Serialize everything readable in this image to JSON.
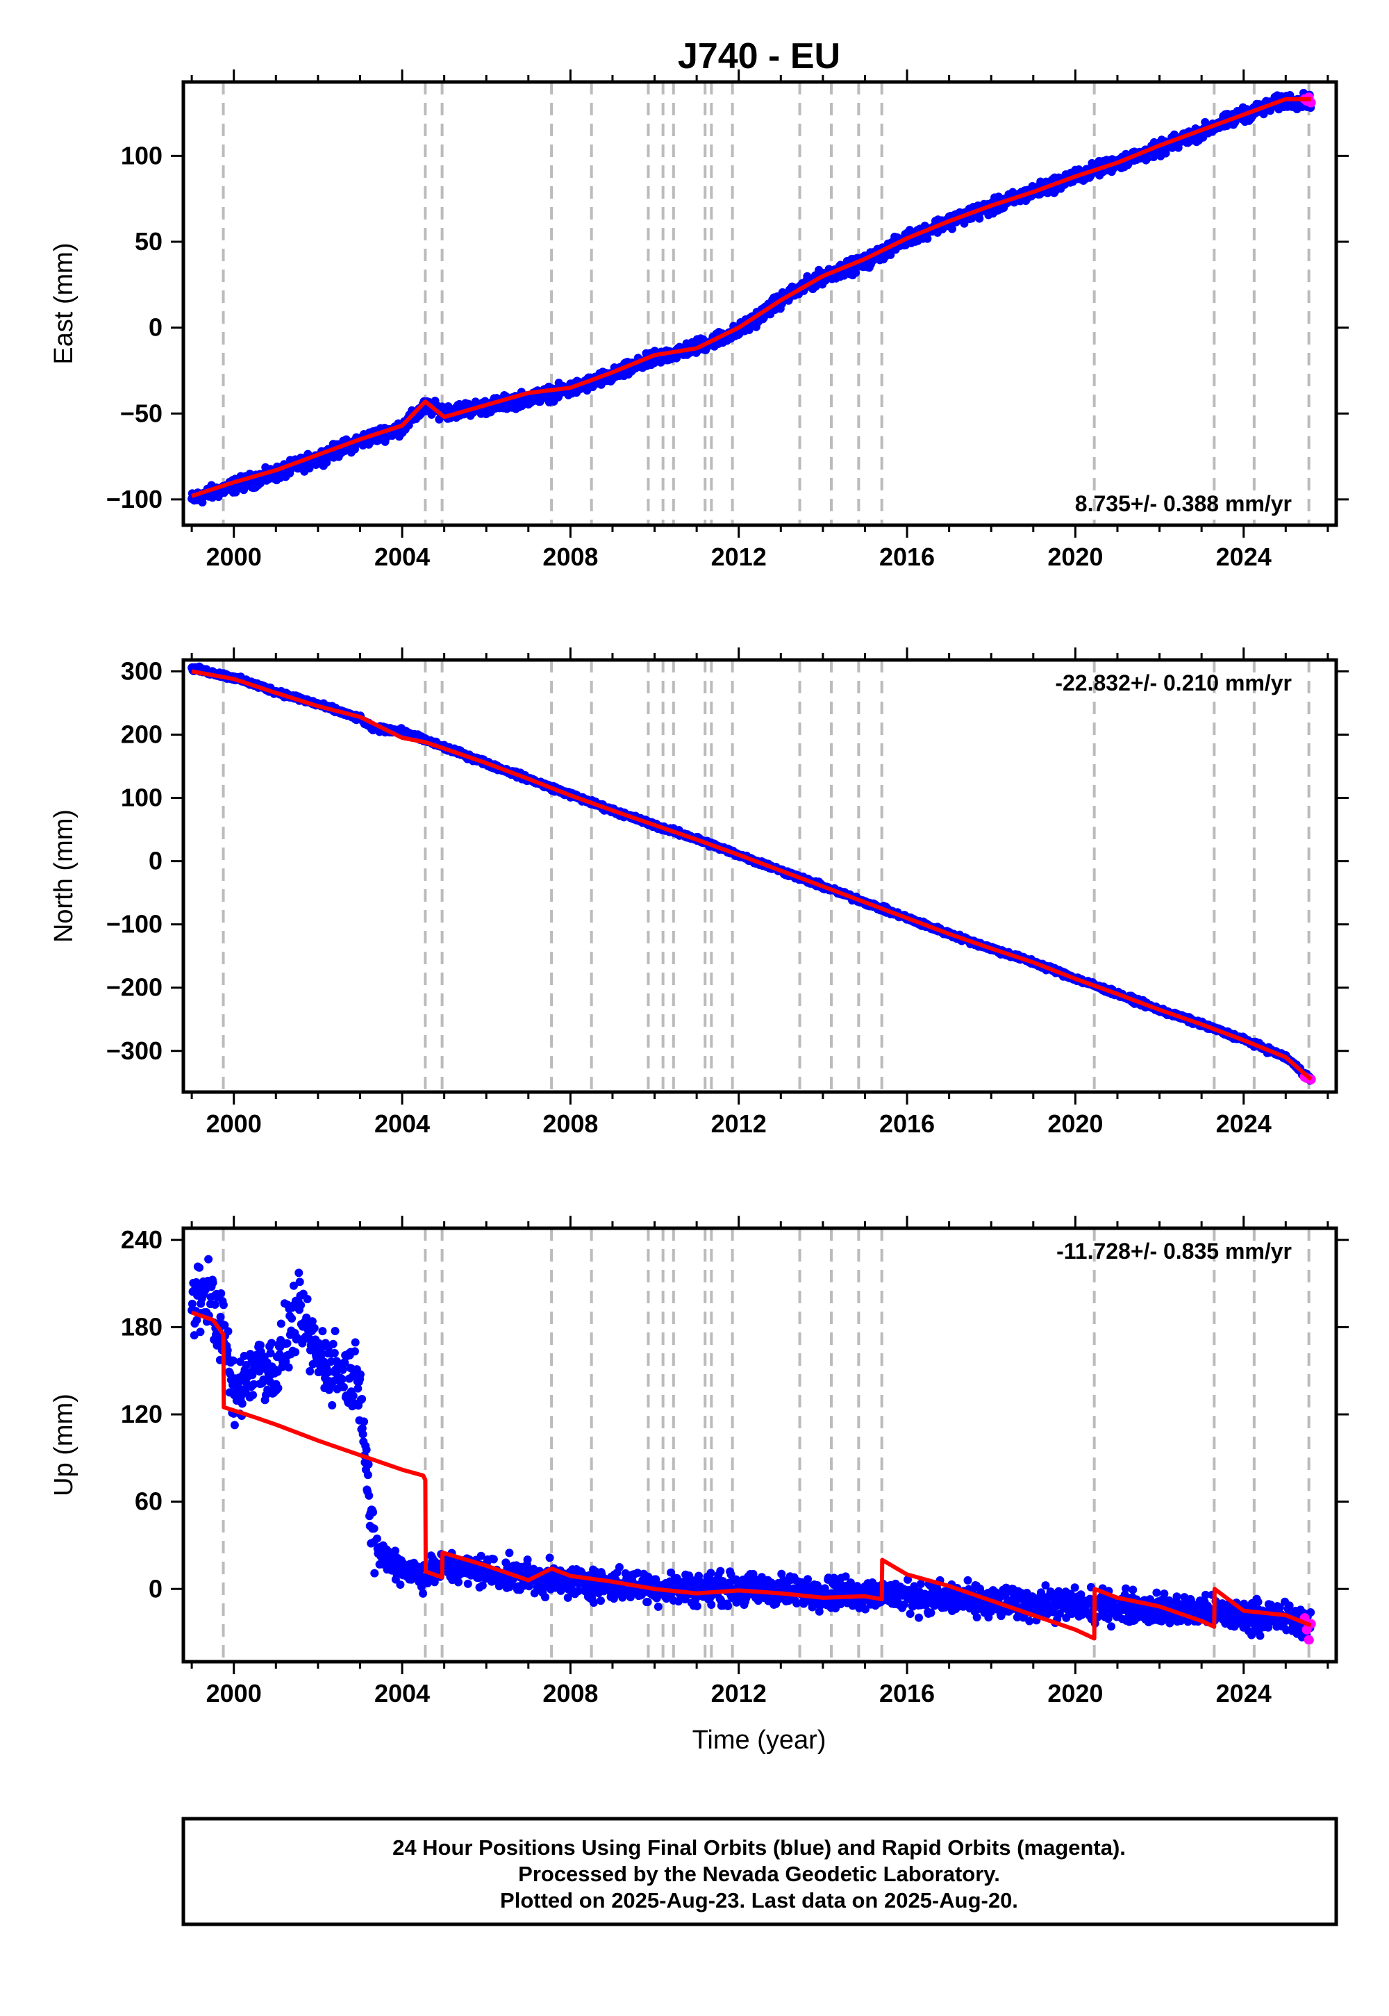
{
  "title": "J740 - EU",
  "xlabel": "Time (year)",
  "footer": {
    "line1": "24 Hour Positions Using Final Orbits (blue) and Rapid Orbits (magenta).",
    "line2": "Processed by the Nevada Geodetic Laboratory.",
    "line3": "Plotted on 2025-Aug-23. Last data on 2025-Aug-20."
  },
  "colors": {
    "final": "#0000ff",
    "rapid": "#ff00ff",
    "model": "#ff0000",
    "steps": "#bbbbbb"
  },
  "chart_data": [
    {
      "type": "scatter",
      "component": "East",
      "ylabel": "East (mm)",
      "rate": "8.735+/- 0.388 mm/yr",
      "rate_position": "bottom-right",
      "xlim": [
        1998.8,
        2026.2
      ],
      "ylim": [
        -115,
        143
      ],
      "xticks": [
        2000,
        2004,
        2008,
        2012,
        2016,
        2020,
        2024
      ],
      "yticks": [
        -100,
        -50,
        0,
        50,
        100
      ],
      "step_epochs": [
        1999.75,
        2004.55,
        2004.95,
        2007.55,
        2008.5,
        2009.85,
        2010.2,
        2010.45,
        2011.2,
        2011.35,
        2011.85,
        2013.45,
        2014.2,
        2014.85,
        2015.4,
        2020.45,
        2023.3,
        2024.25,
        2025.55
      ],
      "series": [
        {
          "name": "Final Orbits (blue)",
          "kind": "points",
          "x": [
            1999.0,
            2000.0,
            2001.0,
            2002.0,
            2003.0,
            2004.0,
            2004.55,
            2005.0,
            2006.0,
            2007.0,
            2008.0,
            2009.0,
            2010.0,
            2011.0,
            2012.0,
            2013.0,
            2014.0,
            2015.0,
            2016.0,
            2017.0,
            2018.0,
            2019.0,
            2020.0,
            2021.0,
            2022.0,
            2023.0,
            2024.0,
            2025.0,
            2025.6
          ],
          "y": [
            -100,
            -92,
            -85,
            -76,
            -66,
            -58,
            -46,
            -49,
            -46,
            -41,
            -36,
            -28,
            -18,
            -11,
            -2,
            16,
            30,
            38,
            52,
            62,
            70,
            79,
            88,
            96,
            104,
            114,
            124,
            132,
            132
          ]
        },
        {
          "name": "Rapid Orbits (magenta)",
          "kind": "points",
          "x": [
            2025.45,
            2025.5,
            2025.55,
            2025.6
          ],
          "y": [
            133,
            132,
            134,
            131
          ]
        },
        {
          "name": "model",
          "kind": "line",
          "x": [
            1999.0,
            2000.0,
            2001.0,
            2002.0,
            2003.0,
            2004.0,
            2004.55,
            2005.0,
            2006.0,
            2007.0,
            2008.0,
            2009.0,
            2010.0,
            2011.0,
            2012.0,
            2013.0,
            2014.0,
            2015.0,
            2016.0,
            2017.0,
            2018.0,
            2019.0,
            2020.0,
            2021.0,
            2022.0,
            2023.0,
            2024.0,
            2025.0,
            2025.6
          ],
          "y": [
            -98,
            -90,
            -83,
            -74,
            -65,
            -57,
            -43,
            -52,
            -45,
            -38,
            -35,
            -26,
            -16,
            -12,
            0,
            16,
            30,
            40,
            52,
            62,
            71,
            79,
            88,
            96,
            106,
            115,
            124,
            133,
            133
          ]
        }
      ]
    },
    {
      "type": "scatter",
      "component": "North",
      "ylabel": "North (mm)",
      "rate": "-22.832+/- 0.210 mm/yr",
      "rate_position": "top-right",
      "xlim": [
        1998.8,
        2026.2
      ],
      "ylim": [
        -365,
        318
      ],
      "xticks": [
        2000,
        2004,
        2008,
        2012,
        2016,
        2020,
        2024
      ],
      "yticks": [
        -300,
        -200,
        -100,
        0,
        100,
        200,
        300
      ],
      "step_epochs": [
        1999.75,
        2004.55,
        2004.95,
        2007.55,
        2008.5,
        2009.85,
        2010.2,
        2010.45,
        2011.2,
        2011.35,
        2011.85,
        2013.45,
        2014.2,
        2014.85,
        2015.4,
        2020.45,
        2023.3,
        2024.25,
        2025.55
      ],
      "series": [
        {
          "name": "Final Orbits (blue)",
          "kind": "points",
          "x": [
            1999.0,
            2000.0,
            2001.0,
            2002.0,
            2003.0,
            2003.3,
            2004.0,
            2005.0,
            2006.0,
            2007.0,
            2008.0,
            2009.0,
            2010.0,
            2011.0,
            2012.0,
            2013.0,
            2014.0,
            2015.0,
            2016.0,
            2017.0,
            2018.0,
            2019.0,
            2020.0,
            2021.0,
            2022.0,
            2023.0,
            2024.0,
            2025.0,
            2025.6
          ],
          "y": [
            305,
            290,
            268,
            248,
            225,
            210,
            205,
            180,
            155,
            130,
            105,
            80,
            57,
            35,
            10,
            -15,
            -40,
            -65,
            -90,
            -115,
            -138,
            -160,
            -185,
            -210,
            -235,
            -258,
            -282,
            -310,
            -345
          ]
        },
        {
          "name": "Rapid Orbits (magenta)",
          "kind": "points",
          "x": [
            2025.45,
            2025.5,
            2025.55,
            2025.6
          ],
          "y": [
            -341,
            -343,
            -344,
            -345
          ]
        },
        {
          "name": "model",
          "kind": "line",
          "x": [
            1999.0,
            2000.0,
            2001.0,
            2002.0,
            2003.0,
            2004.0,
            2004.55,
            2005.0,
            2006.0,
            2007.0,
            2008.0,
            2009.0,
            2010.0,
            2011.0,
            2012.0,
            2013.0,
            2014.0,
            2015.0,
            2016.0,
            2017.0,
            2018.0,
            2019.0,
            2020.0,
            2021.0,
            2022.0,
            2023.0,
            2024.0,
            2025.0,
            2025.6
          ],
          "y": [
            300,
            288,
            266,
            245,
            228,
            195,
            188,
            178,
            155,
            130,
            104,
            80,
            57,
            34,
            10,
            -15,
            -40,
            -65,
            -90,
            -115,
            -138,
            -160,
            -186,
            -210,
            -235,
            -258,
            -283,
            -310,
            -345
          ]
        }
      ]
    },
    {
      "type": "scatter",
      "component": "Up",
      "ylabel": "Up (mm)",
      "xlabel": "Time (year)",
      "rate": "-11.728+/- 0.835 mm/yr",
      "rate_position": "top-right",
      "xlim": [
        1998.8,
        2026.2
      ],
      "ylim": [
        -50,
        248
      ],
      "xticks": [
        2000,
        2004,
        2008,
        2012,
        2016,
        2020,
        2024
      ],
      "yticks": [
        0,
        60,
        120,
        180,
        240
      ],
      "step_epochs": [
        1999.75,
        2004.55,
        2004.95,
        2007.55,
        2008.5,
        2009.85,
        2010.2,
        2010.45,
        2011.2,
        2011.35,
        2011.85,
        2013.45,
        2014.2,
        2014.85,
        2015.4,
        2020.45,
        2023.3,
        2024.25,
        2025.55
      ],
      "series": [
        {
          "name": "Final Orbits (blue)",
          "kind": "points",
          "x": [
            1999.0,
            1999.4,
            1999.8,
            2000.0,
            2000.5,
            2001.0,
            2001.5,
            2002.0,
            2002.5,
            2003.0,
            2003.3,
            2004.0,
            2004.5,
            2005.0,
            2006.0,
            2007.0,
            2008.0,
            2009.0,
            2010.0,
            2011.0,
            2012.0,
            2013.0,
            2014.0,
            2015.0,
            2016.0,
            2017.0,
            2018.0,
            2019.0,
            2020.0,
            2021.0,
            2022.0,
            2023.0,
            2024.0,
            2025.0,
            2025.6
          ],
          "y": [
            195,
            205,
            170,
            130,
            155,
            150,
            190,
            160,
            150,
            145,
            28,
            15,
            10,
            15,
            12,
            8,
            5,
            3,
            1,
            0,
            0,
            -1,
            -2,
            -3,
            -5,
            -7,
            -9,
            -10,
            -11,
            -12,
            -14,
            -16,
            -18,
            -20,
            -25
          ]
        },
        {
          "name": "Rapid Orbits (magenta)",
          "kind": "points",
          "x": [
            2025.45,
            2025.5,
            2025.55,
            2025.6
          ],
          "y": [
            -20,
            -28,
            -35,
            -24
          ]
        },
        {
          "name": "model",
          "kind": "line",
          "x": [
            1999.0,
            1999.5,
            1999.75,
            1999.76,
            2000.5,
            2001.0,
            2002.0,
            2003.0,
            2004.0,
            2004.5,
            2004.55,
            2004.56,
            2004.95,
            2004.96,
            2006.0,
            2007.0,
            2007.55,
            2008.0,
            2009.0,
            2010.0,
            2011.0,
            2012.0,
            2013.0,
            2014.0,
            2015.0,
            2015.4,
            2015.41,
            2016.0,
            2017.0,
            2018.0,
            2019.0,
            2020.0,
            2020.45,
            2020.46,
            2021.0,
            2022.0,
            2023.0,
            2023.3,
            2023.31,
            2024.0,
            2025.0,
            2025.6
          ],
          "y": [
            190,
            185,
            175,
            125,
            118,
            113,
            102,
            92,
            82,
            78,
            75,
            12,
            8,
            25,
            16,
            6,
            14,
            9,
            5,
            0,
            -3,
            -1,
            -3,
            -6,
            -5,
            -7,
            20,
            10,
            2,
            -8,
            -18,
            -28,
            -34,
            0,
            -6,
            -12,
            -22,
            -26,
            0,
            -15,
            -18,
            -25
          ]
        }
      ]
    }
  ]
}
